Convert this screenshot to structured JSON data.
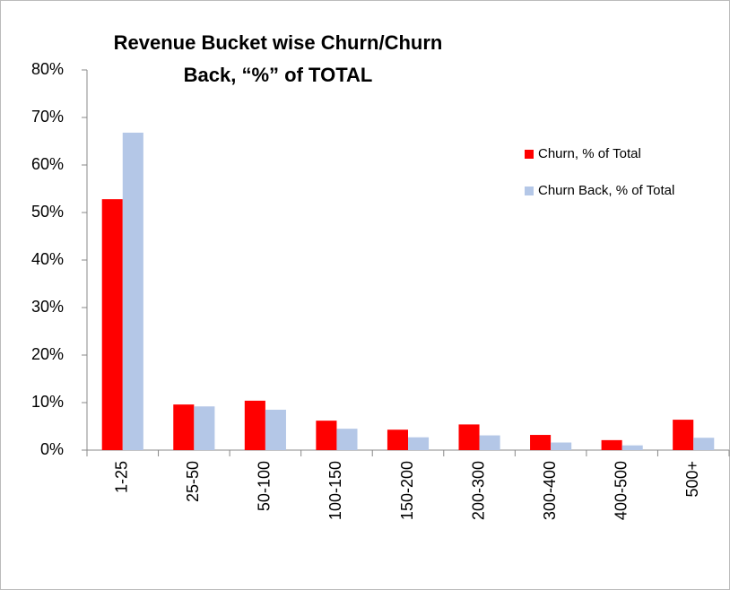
{
  "chart_data": {
    "type": "bar",
    "title": "Revenue Bucket wise Churn/Churn Back, “%” of TOTAL",
    "categories": [
      "1-25",
      "25-50",
      "50-100",
      "100-150",
      "150-200",
      "200-300",
      "300-400",
      "400-500",
      "500+"
    ],
    "series": [
      {
        "name": "Churn, % of Total",
        "color": "#ff0000",
        "values": [
          52.8,
          9.6,
          10.4,
          6.2,
          4.3,
          5.4,
          3.2,
          2.1,
          6.4
        ]
      },
      {
        "name": "Churn Back, % of Total",
        "color": "#b4c7e7",
        "values": [
          66.8,
          9.2,
          8.5,
          4.5,
          2.7,
          3.1,
          1.6,
          1.0,
          2.6
        ]
      }
    ],
    "ylim": [
      0,
      80
    ],
    "yticks": [
      {
        "value": 0,
        "label": "0%"
      },
      {
        "value": 10,
        "label": "10%"
      },
      {
        "value": 20,
        "label": "20%"
      },
      {
        "value": 30,
        "label": "30%"
      },
      {
        "value": 40,
        "label": "40%"
      },
      {
        "value": 50,
        "label": "50%"
      },
      {
        "value": 60,
        "label": "60%"
      },
      {
        "value": 70,
        "label": "70%"
      },
      {
        "value": 80,
        "label": "80%"
      }
    ],
    "grid": false,
    "legend": "right"
  }
}
